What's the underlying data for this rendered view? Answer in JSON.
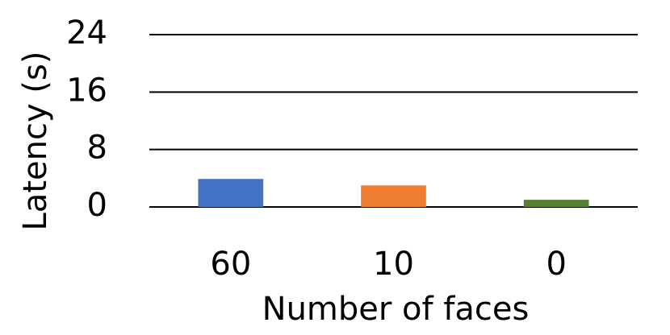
{
  "chart_data": {
    "type": "bar",
    "x_label": "Number of faces",
    "y_label": "Latency (s)",
    "categories": [
      "60",
      "10",
      "0"
    ],
    "values": [
      3.9,
      3.0,
      1.0
    ],
    "colors": [
      "#4472c4",
      "#ed7d31",
      "#548235"
    ],
    "ylim": [
      0,
      24
    ],
    "yticks": [
      0,
      8,
      16,
      24
    ],
    "grid": true
  }
}
